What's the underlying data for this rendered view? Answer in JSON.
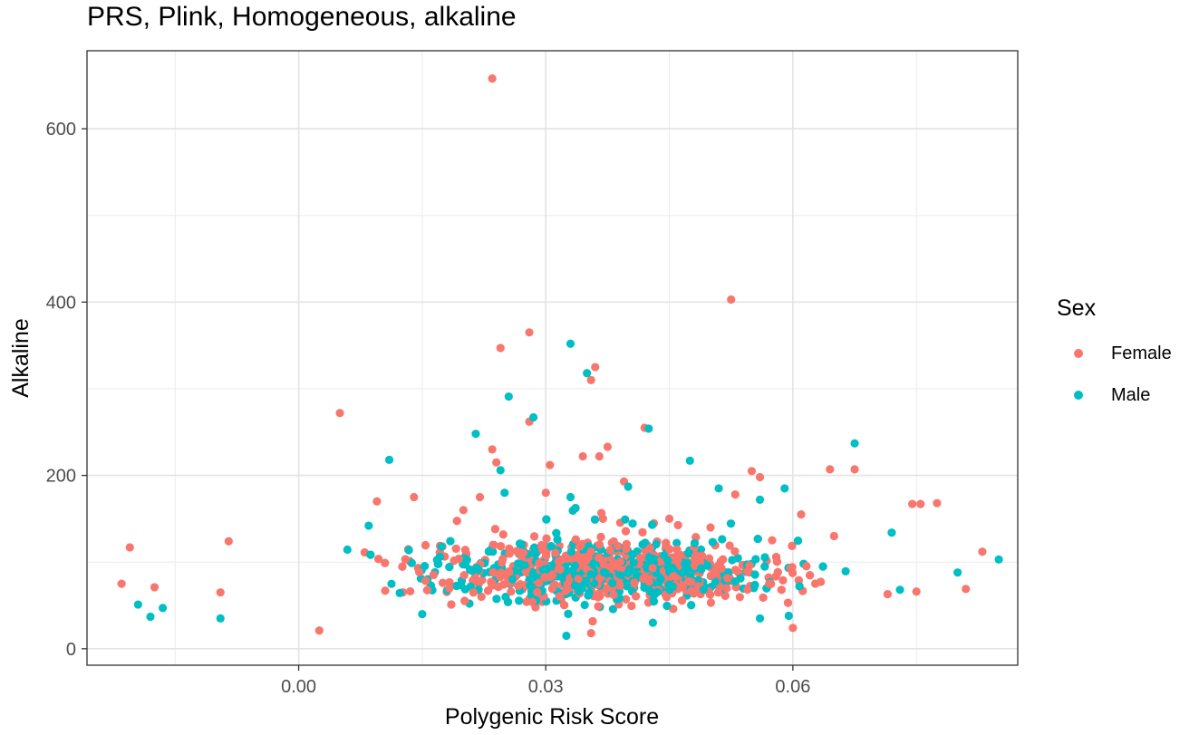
{
  "chart_data": {
    "type": "scatter",
    "title": "PRS, Plink, Homogeneous, alkaline",
    "xlabel": "Polygenic Risk Score",
    "ylabel": "Alkaline",
    "xlim": [
      -0.0257,
      0.0873
    ],
    "ylim": [
      -19,
      690
    ],
    "x_ticks": [
      0.0,
      0.03,
      0.06
    ],
    "x_tick_labels": [
      "0.00",
      "0.03",
      "0.06"
    ],
    "y_ticks": [
      0,
      200,
      400,
      600
    ],
    "y_tick_labels": [
      "0",
      "200",
      "400",
      "600"
    ],
    "grid": true,
    "legend": {
      "title": "Sex",
      "position": "right"
    },
    "series": [
      {
        "name": "Female",
        "color": "#F8766D",
        "points": [
          [
            0.0235,
            658
          ],
          [
            0.0525,
            403
          ],
          [
            0.028,
            365
          ],
          [
            0.0245,
            347
          ],
          [
            0.036,
            325
          ],
          [
            0.0355,
            310
          ],
          [
            0.005,
            272
          ],
          [
            0.028,
            262
          ],
          [
            0.042,
            255
          ],
          [
            0.0235,
            230
          ],
          [
            0.024,
            215
          ],
          [
            0.0305,
            212
          ],
          [
            0.0365,
            222
          ],
          [
            0.0345,
            222
          ],
          [
            0.0375,
            233
          ],
          [
            0.0395,
            193
          ],
          [
            0.0645,
            207
          ],
          [
            0.0675,
            207
          ],
          [
            0.055,
            205
          ],
          [
            0.053,
            178
          ],
          [
            0.056,
            198
          ],
          [
            0.0745,
            167
          ],
          [
            0.0755,
            167
          ],
          [
            0.0775,
            168
          ],
          [
            -0.0205,
            117
          ],
          [
            -0.0215,
            75
          ],
          [
            -0.0175,
            71
          ],
          [
            -0.0085,
            124
          ],
          [
            -0.0095,
            65
          ],
          [
            0.0095,
            170
          ],
          [
            0.014,
            175
          ],
          [
            0.061,
            155
          ],
          [
            0.083,
            112
          ],
          [
            0.081,
            69
          ],
          [
            0.075,
            66
          ],
          [
            0.0715,
            63
          ],
          [
            0.06,
            24
          ],
          [
            0.0025,
            21
          ],
          [
            0.0355,
            18
          ],
          [
            0.02,
            160
          ],
          [
            0.022,
            175
          ],
          [
            0.03,
            180
          ],
          [
            0.045,
            150
          ],
          [
            0.05,
            140
          ],
          [
            0.065,
            130
          ]
        ]
      },
      {
        "name": "Male",
        "color": "#00BFC4",
        "points": [
          [
            0.033,
            352
          ],
          [
            0.035,
            318
          ],
          [
            0.0255,
            291
          ],
          [
            0.0285,
            267
          ],
          [
            0.0425,
            254
          ],
          [
            0.0215,
            248
          ],
          [
            0.0675,
            237
          ],
          [
            0.011,
            218
          ],
          [
            0.0475,
            217
          ],
          [
            0.0245,
            206
          ],
          [
            0.04,
            187
          ],
          [
            0.059,
            185
          ],
          [
            0.051,
            185
          ],
          [
            0.056,
            172
          ],
          [
            0.072,
            134
          ],
          [
            0.085,
            103
          ],
          [
            0.08,
            88
          ],
          [
            -0.0195,
            51
          ],
          [
            -0.018,
            37
          ],
          [
            -0.0165,
            47
          ],
          [
            -0.0095,
            35
          ],
          [
            0.073,
            68
          ],
          [
            0.0325,
            15
          ],
          [
            0.0595,
            38
          ],
          [
            0.056,
            35
          ],
          [
            0.0085,
            142
          ],
          [
            0.043,
            30
          ],
          [
            0.015,
            40
          ],
          [
            0.033,
            175
          ],
          [
            0.025,
            180
          ]
        ]
      }
    ]
  }
}
